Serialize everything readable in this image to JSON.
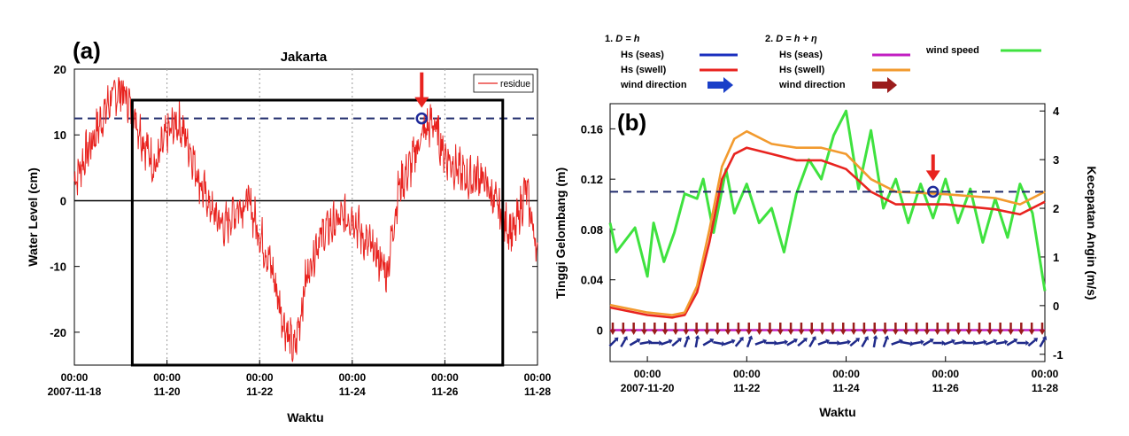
{
  "chart_data": [
    {
      "panel_label": "(a)",
      "type": "line",
      "title": "Jakarta",
      "xlabel": "Waktu",
      "ylabel": "Water Level (cm)",
      "x_range": [
        "2007-11-18 00:00",
        "2007-11-28 00:00"
      ],
      "ylim": [
        -25,
        20
      ],
      "y_ticks": [
        20,
        10,
        0,
        -10,
        -20
      ],
      "x_ticks": [
        {
          "x": "2007-11-18 00:00",
          "line1": "00:00",
          "line2": "2007-11-18"
        },
        {
          "x": "2007-11-20 00:00",
          "line1": "00:00",
          "line2": "11-20"
        },
        {
          "x": "2007-11-22 00:00",
          "line1": "00:00",
          "line2": "11-22"
        },
        {
          "x": "2007-11-24 00:00",
          "line1": "00:00",
          "line2": "11-24"
        },
        {
          "x": "2007-11-26 00:00",
          "line1": "00:00",
          "line2": "11-26"
        },
        {
          "x": "2007-11-28 00:00",
          "line1": "00:00",
          "line2": "11-28"
        }
      ],
      "grid": "vertical dotted at tick marks",
      "legend": {
        "position": "top-right",
        "entries": [
          "residue"
        ]
      },
      "threshold_line": {
        "y": 12.5,
        "style": "dashed",
        "color": "#1f2a6b"
      },
      "zero_line": {
        "y": 0
      },
      "highlight_window": {
        "x_start": "2007-11-19 06:00",
        "x_end": "2007-11-27 06:00"
      },
      "marker": {
        "x": "2007-11-25 12:00",
        "y": 12.5
      },
      "series": [
        {
          "name": "residue",
          "color": "#e8231f",
          "points": [
            [
              "2007-11-18 00:00",
              3
            ],
            [
              "2007-11-18 06:00",
              7
            ],
            [
              "2007-11-18 12:00",
              11
            ],
            [
              "2007-11-18 18:00",
              15
            ],
            [
              "2007-11-19 00:00",
              17
            ],
            [
              "2007-11-19 06:00",
              14
            ],
            [
              "2007-11-19 12:00",
              9
            ],
            [
              "2007-11-19 18:00",
              5
            ],
            [
              "2007-11-20 00:00",
              10
            ],
            [
              "2007-11-20 06:00",
              12
            ],
            [
              "2007-11-20 12:00",
              8
            ],
            [
              "2007-11-20 18:00",
              2
            ],
            [
              "2007-11-21 00:00",
              -2
            ],
            [
              "2007-11-21 06:00",
              -4
            ],
            [
              "2007-11-21 12:00",
              -1
            ],
            [
              "2007-11-21 18:00",
              0
            ],
            [
              "2007-11-22 00:00",
              -5
            ],
            [
              "2007-11-22 06:00",
              -10
            ],
            [
              "2007-11-22 12:00",
              -18
            ],
            [
              "2007-11-22 18:00",
              -23
            ],
            [
              "2007-11-23 00:00",
              -12
            ],
            [
              "2007-11-23 06:00",
              -6
            ],
            [
              "2007-11-23 12:00",
              -4
            ],
            [
              "2007-11-23 18:00",
              -3
            ],
            [
              "2007-11-24 00:00",
              -2
            ],
            [
              "2007-11-24 06:00",
              -6
            ],
            [
              "2007-11-24 12:00",
              -8
            ],
            [
              "2007-11-24 18:00",
              -11
            ],
            [
              "2007-11-25 00:00",
              2
            ],
            [
              "2007-11-25 06:00",
              5
            ],
            [
              "2007-11-25 12:00",
              10
            ],
            [
              "2007-11-25 18:00",
              12
            ],
            [
              "2007-11-26 00:00",
              7
            ],
            [
              "2007-11-26 06:00",
              5
            ],
            [
              "2007-11-26 12:00",
              3
            ],
            [
              "2007-11-26 18:00",
              4
            ],
            [
              "2007-11-27 00:00",
              1
            ],
            [
              "2007-11-27 06:00",
              -3
            ],
            [
              "2007-11-27 12:00",
              -5
            ],
            [
              "2007-11-27 18:00",
              2
            ],
            [
              "2007-11-28 00:00",
              -8
            ]
          ]
        }
      ]
    },
    {
      "panel_label": "(b)",
      "type": "line",
      "xlabel": "Waktu",
      "ylabel": "Tinggi Gelombang (m)",
      "y2label": "Kecepatan Angin (m/s)",
      "x_range": [
        "2007-11-19 06:00",
        "2007-11-28 00:00"
      ],
      "ylim": [
        -0.025,
        0.18
      ],
      "y_ticks": [
        0,
        0.04,
        0.08,
        0.12,
        0.16
      ],
      "y_tick_labels": [
        "0",
        "0.04",
        "0.08",
        "0.12",
        "0.16"
      ],
      "y2lim": [
        -1.15,
        4.15
      ],
      "y2_ticks": [
        -1,
        0,
        1,
        2,
        3,
        4
      ],
      "x_ticks": [
        {
          "x": "2007-11-20 00:00",
          "line1": "00:00",
          "line2": "2007-11-20"
        },
        {
          "x": "2007-11-22 00:00",
          "line1": "00:00",
          "line2": "11-22"
        },
        {
          "x": "2007-11-24 00:00",
          "line1": "00:00",
          "line2": "11-24"
        },
        {
          "x": "2007-11-26 00:00",
          "line1": "00:00",
          "line2": "11-26"
        },
        {
          "x": "2007-11-28 00:00",
          "line1": "00:00",
          "line2": "11-28"
        }
      ],
      "legend": {
        "position": "top",
        "group1_title_prefix": "1. ",
        "group1_title_eq": "D = h",
        "group2_title_prefix": "2. ",
        "group2_title_eq": "D = h + η",
        "entries": [
          {
            "label": "Hs (seas)",
            "color": "#1a2fbf",
            "group": 1
          },
          {
            "label": "Hs (swell)",
            "color": "#e8231f",
            "group": 1
          },
          {
            "label": "wind direction",
            "color": "#1a3fc8",
            "group": 1,
            "symbol": "arrow"
          },
          {
            "label": "Hs (seas)",
            "color": "#c21fc2",
            "group": 2
          },
          {
            "label": "Hs (swell)",
            "color": "#f29a2e",
            "group": 2
          },
          {
            "label": "wind direction",
            "color": "#9b1c1c",
            "group": 2,
            "symbol": "arrow"
          },
          {
            "label": "wind speed",
            "color": "#3fe23f",
            "group": 3
          }
        ]
      },
      "threshold_line": {
        "y": 0.11,
        "style": "dashed",
        "color": "#1f2a6b"
      },
      "marker": {
        "x": "2007-11-25 18:00",
        "y": 0.11
      },
      "series": [
        {
          "name": "Hs (swell), D = h",
          "color": "#e8231f",
          "axis": "left",
          "points": [
            [
              "2007-11-19 06:00",
              0.018
            ],
            [
              "2007-11-20 00:00",
              0.012
            ],
            [
              "2007-11-20 12:00",
              0.01
            ],
            [
              "2007-11-20 18:00",
              0.012
            ],
            [
              "2007-11-21 00:00",
              0.03
            ],
            [
              "2007-11-21 06:00",
              0.07
            ],
            [
              "2007-11-21 12:00",
              0.12
            ],
            [
              "2007-11-21 18:00",
              0.14
            ],
            [
              "2007-11-22 00:00",
              0.145
            ],
            [
              "2007-11-22 12:00",
              0.14
            ],
            [
              "2007-11-23 00:00",
              0.135
            ],
            [
              "2007-11-23 12:00",
              0.135
            ],
            [
              "2007-11-24 00:00",
              0.128
            ],
            [
              "2007-11-24 12:00",
              0.11
            ],
            [
              "2007-11-25 00:00",
              0.1
            ],
            [
              "2007-11-26 00:00",
              0.1
            ],
            [
              "2007-11-27 00:00",
              0.096
            ],
            [
              "2007-11-27 12:00",
              0.092
            ],
            [
              "2007-11-28 00:00",
              0.102
            ]
          ]
        },
        {
          "name": "Hs (swell), D = h + η",
          "color": "#f29a2e",
          "axis": "left",
          "points": [
            [
              "2007-11-19 06:00",
              0.02
            ],
            [
              "2007-11-20 00:00",
              0.014
            ],
            [
              "2007-11-20 12:00",
              0.012
            ],
            [
              "2007-11-20 18:00",
              0.014
            ],
            [
              "2007-11-21 00:00",
              0.035
            ],
            [
              "2007-11-21 06:00",
              0.08
            ],
            [
              "2007-11-21 12:00",
              0.13
            ],
            [
              "2007-11-21 18:00",
              0.152
            ],
            [
              "2007-11-22 00:00",
              0.158
            ],
            [
              "2007-11-22 12:00",
              0.148
            ],
            [
              "2007-11-23 00:00",
              0.145
            ],
            [
              "2007-11-23 12:00",
              0.145
            ],
            [
              "2007-11-24 00:00",
              0.14
            ],
            [
              "2007-11-24 12:00",
              0.12
            ],
            [
              "2007-11-25 00:00",
              0.11
            ],
            [
              "2007-11-26 00:00",
              0.108
            ],
            [
              "2007-11-27 00:00",
              0.105
            ],
            [
              "2007-11-27 12:00",
              0.1
            ],
            [
              "2007-11-28 00:00",
              0.11
            ]
          ]
        },
        {
          "name": "Hs (seas), D = h + η",
          "color": "#c21fc2",
          "axis": "left",
          "points": [
            [
              "2007-11-19 06:00",
              0.0
            ],
            [
              "2007-11-28 00:00",
              0.0
            ]
          ]
        },
        {
          "name": "wind speed",
          "color": "#3fe23f",
          "axis": "right",
          "points": [
            [
              "2007-11-19 06:00",
              1.7
            ],
            [
              "2007-11-19 09:00",
              1.1
            ],
            [
              "2007-11-19 18:00",
              1.6
            ],
            [
              "2007-11-20 00:00",
              0.6
            ],
            [
              "2007-11-20 03:00",
              1.7
            ],
            [
              "2007-11-20 08:00",
              0.9
            ],
            [
              "2007-11-20 13:00",
              1.5
            ],
            [
              "2007-11-20 18:00",
              2.3
            ],
            [
              "2007-11-21 00:00",
              2.2
            ],
            [
              "2007-11-21 03:00",
              2.6
            ],
            [
              "2007-11-21 08:00",
              1.5
            ],
            [
              "2007-11-21 14:00",
              2.8
            ],
            [
              "2007-11-21 18:00",
              1.9
            ],
            [
              "2007-11-22 00:00",
              2.5
            ],
            [
              "2007-11-22 06:00",
              1.7
            ],
            [
              "2007-11-22 12:00",
              2.0
            ],
            [
              "2007-11-22 18:00",
              1.1
            ],
            [
              "2007-11-23 00:00",
              2.3
            ],
            [
              "2007-11-23 06:00",
              3.0
            ],
            [
              "2007-11-23 12:00",
              2.6
            ],
            [
              "2007-11-23 18:00",
              3.5
            ],
            [
              "2007-11-24 00:00",
              4.0
            ],
            [
              "2007-11-24 06:00",
              2.4
            ],
            [
              "2007-11-24 12:00",
              3.6
            ],
            [
              "2007-11-24 18:00",
              2.0
            ],
            [
              "2007-11-25 00:00",
              2.6
            ],
            [
              "2007-11-25 06:00",
              1.7
            ],
            [
              "2007-11-25 12:00",
              2.5
            ],
            [
              "2007-11-25 18:00",
              1.8
            ],
            [
              "2007-11-26 00:00",
              2.6
            ],
            [
              "2007-11-26 06:00",
              1.7
            ],
            [
              "2007-11-26 12:00",
              2.4
            ],
            [
              "2007-11-26 18:00",
              1.3
            ],
            [
              "2007-11-27 00:00",
              2.2
            ],
            [
              "2007-11-27 06:00",
              1.4
            ],
            [
              "2007-11-27 12:00",
              2.5
            ],
            [
              "2007-11-27 18:00",
              1.9
            ],
            [
              "2007-11-28 00:00",
              0.3
            ]
          ]
        }
      ],
      "wind_direction_arrows": {
        "D = h + η": {
          "color": "#9b1c1c",
          "count": 42,
          "direction": "down"
        },
        "D = h": {
          "color": "#1f2a8a",
          "count": 42,
          "direction": "mostly northeast"
        }
      }
    }
  ]
}
